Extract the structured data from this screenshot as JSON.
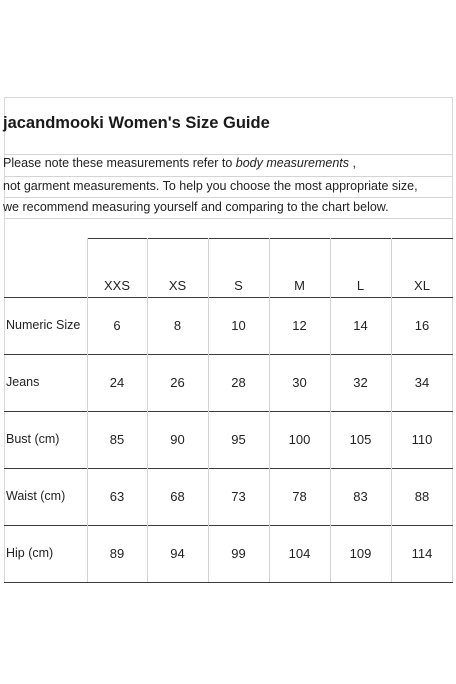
{
  "title": "jacandmooki Women's Size Guide",
  "note": {
    "line1_prefix": "Please note these measurements refer to ",
    "line1_italic": "body  measurements",
    "line1_suffix": " ,",
    "line2": "not garment measurements. To help you choose the most appropriate size,",
    "line3": "we recommend measuring yourself and comparing to the chart below."
  },
  "table": {
    "columns": [
      "XXS",
      "XS",
      "S",
      "M",
      "L",
      "XL"
    ],
    "rows": [
      {
        "label": "Numeric Size",
        "values": [
          "6",
          "8",
          "10",
          "12",
          "14",
          "16"
        ]
      },
      {
        "label": "Jeans",
        "values": [
          "24",
          "26",
          "28",
          "30",
          "32",
          "34"
        ]
      },
      {
        "label": "Bust (cm)",
        "values": [
          "85",
          "90",
          "95",
          "100",
          "105",
          "110"
        ]
      },
      {
        "label": "Waist (cm)",
        "values": [
          "63",
          "68",
          "73",
          "78",
          "83",
          "88"
        ]
      },
      {
        "label": "Hip (cm)",
        "values": [
          "89",
          "94",
          "99",
          "104",
          "109",
          "114"
        ]
      }
    ]
  }
}
